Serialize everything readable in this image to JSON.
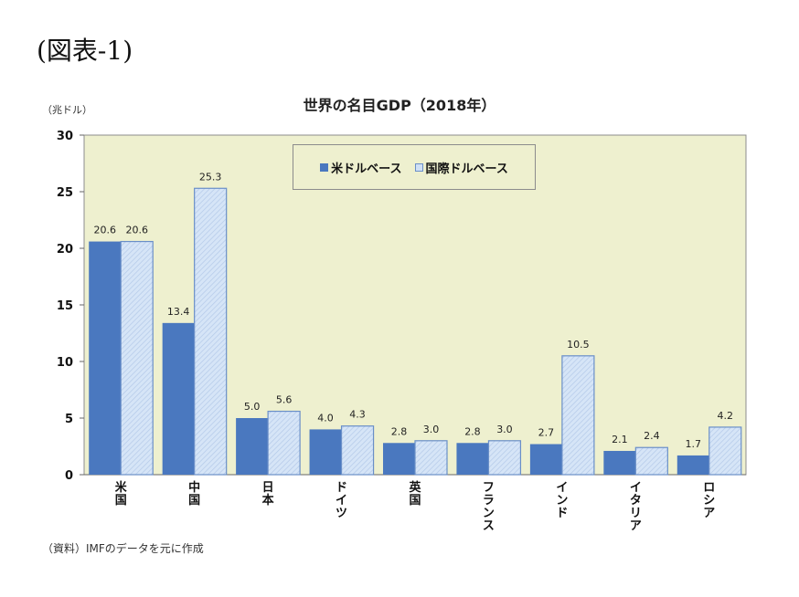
{
  "figure_label": "(図表-1)",
  "unit_label": "（兆ドル）",
  "source_note": "（資料）IMFのデータを元に作成",
  "colors": {
    "plot_bg": "#eef0cf",
    "series_a": "#4a78bf",
    "series_b": "#cfe0f5",
    "series_b_edge": "#6a8fc8"
  },
  "chart_data": {
    "type": "bar",
    "title": "世界の名目GDP（2018年）",
    "categories": [
      "米国",
      "中国",
      "日本",
      "ドイツ",
      "英国",
      "フランス",
      "インド",
      "イタリア",
      "ロシア"
    ],
    "series": [
      {
        "name": "米ドルベース",
        "values": [
          20.6,
          13.4,
          5.0,
          4.0,
          2.8,
          2.8,
          2.7,
          2.1,
          1.7
        ]
      },
      {
        "name": "国際ドルベース",
        "values": [
          20.6,
          25.3,
          5.6,
          4.3,
          3.0,
          3.0,
          10.5,
          2.4,
          4.2
        ]
      }
    ],
    "ylim": [
      0,
      30
    ],
    "yticks": [
      0,
      5,
      10,
      15,
      20,
      25,
      30
    ],
    "xlabel": "",
    "ylabel": "",
    "grid": false,
    "legend": "top-center"
  }
}
